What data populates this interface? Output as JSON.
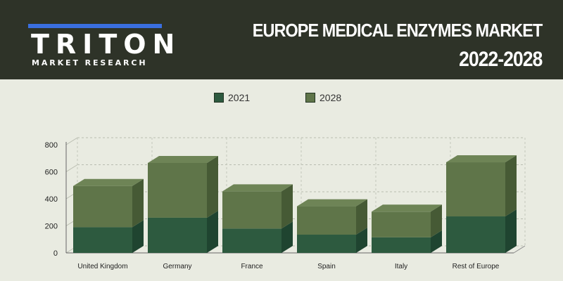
{
  "header": {
    "logo_text": "TRITON",
    "logo_sub": "MARKET RESEARCH",
    "title_line1": "EUROPE MEDICAL ENZYMES MARKET",
    "title_line2": "2022-2028"
  },
  "colors": {
    "header_bg": "#2e3328",
    "series_2021": "#2d5a3f",
    "series_2028": "#5f7549",
    "logo_accent": "#3a6fe0"
  },
  "chart_data": {
    "type": "bar",
    "stacked": true,
    "three_d": true,
    "categories": [
      "United Kingdom",
      "Germany",
      "France",
      "Spain",
      "Italy",
      "Rest of Europe"
    ],
    "series": [
      {
        "name": "2021",
        "values": [
          190,
          260,
          180,
          135,
          115,
          270
        ]
      },
      {
        "name": "2028",
        "values": [
          305,
          405,
          275,
          210,
          190,
          400
        ]
      }
    ],
    "ylim": [
      0,
      800
    ],
    "yticks": [
      "0",
      "200",
      "400",
      "600",
      "800"
    ],
    "grid": true,
    "legend_position": "top"
  }
}
